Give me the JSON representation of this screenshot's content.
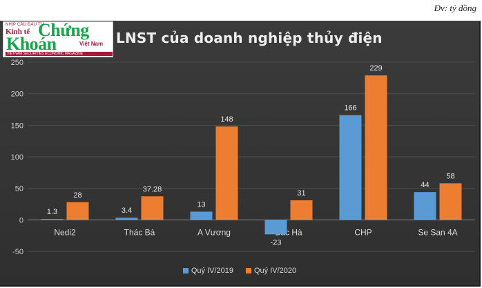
{
  "unit_note": "Đv: tỷ đồng",
  "logo": {
    "top_line": "NHỊP CẦU ĐẦU TƯ",
    "kinh_te": "Kinh tế",
    "chung": "Chứng",
    "khoan": "Khoán",
    "viet_nam": "Việt Nam",
    "bottom_line": "VIETNAM SECURITIES ECONOMIC MAGAZINE"
  },
  "chart_data": {
    "type": "bar",
    "title": "LNST của doanh nghiệp thủy điện",
    "categories": [
      "Nedi2",
      "Thác Bà",
      "A Vương",
      "Bắc Hà",
      "CHP",
      "Se San 4A"
    ],
    "series": [
      {
        "name": "Quý IV/2019",
        "color": "#5b9bd5",
        "values": [
          1.3,
          3.4,
          13,
          -23,
          166,
          44
        ],
        "labels": [
          "1.3",
          "3.4",
          "13",
          "-23",
          "166",
          "44"
        ]
      },
      {
        "name": "Quý IV/2020",
        "color": "#ed7d31",
        "values": [
          28,
          37.28,
          148,
          31,
          229,
          58
        ],
        "labels": [
          "28",
          "37.28",
          "148",
          "31",
          "229",
          "58"
        ]
      }
    ],
    "ylim": [
      -50,
      250
    ],
    "yticks": [
      -50,
      0,
      50,
      100,
      150,
      200,
      250
    ],
    "grid": true,
    "legend": "bottom"
  }
}
